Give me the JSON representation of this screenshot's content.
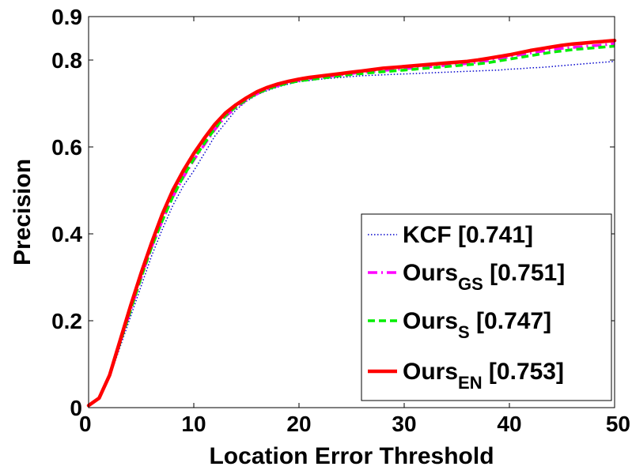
{
  "chart_data": {
    "type": "line",
    "title": "",
    "xlabel": "Location Error Threshold",
    "ylabel": "Precision",
    "xlim": [
      0,
      50
    ],
    "ylim": [
      0,
      0.9
    ],
    "xticks": [
      0,
      10,
      20,
      30,
      40,
      50
    ],
    "xtick_labels": [
      "0",
      "10",
      "20",
      "30",
      "40",
      "50"
    ],
    "yticks": [
      0,
      0.2,
      0.4,
      0.6,
      0.8,
      0.9
    ],
    "ytick_labels": [
      "0",
      "0.2",
      "0.4",
      "0.6",
      "0.8",
      "0.9"
    ],
    "grid": false,
    "legend_position": "bottom-right",
    "x": [
      0,
      1,
      2,
      3,
      4,
      5,
      6,
      7,
      8,
      9,
      10,
      11,
      12,
      13,
      14,
      15,
      16,
      17,
      18,
      19,
      20,
      21,
      22,
      23,
      24,
      25,
      26,
      27,
      28,
      29,
      30,
      31,
      32,
      33,
      34,
      35,
      36,
      37,
      38,
      39,
      40,
      41,
      42,
      43,
      44,
      45,
      46,
      47,
      48,
      49,
      50
    ],
    "series": [
      {
        "name": "KCF",
        "sub": "",
        "score": "[0.741]",
        "color": "#0000cc",
        "dash": "1.5 2.5",
        "width": 1.5,
        "values": [
          0.005,
          0.02,
          0.07,
          0.14,
          0.21,
          0.28,
          0.35,
          0.41,
          0.465,
          0.51,
          0.545,
          0.585,
          0.625,
          0.655,
          0.685,
          0.705,
          0.72,
          0.73,
          0.738,
          0.745,
          0.75,
          0.753,
          0.756,
          0.758,
          0.76,
          0.762,
          0.764,
          0.765,
          0.766,
          0.767,
          0.768,
          0.769,
          0.77,
          0.771,
          0.772,
          0.773,
          0.774,
          0.775,
          0.776,
          0.777,
          0.779,
          0.78,
          0.782,
          0.783,
          0.785,
          0.787,
          0.789,
          0.791,
          0.793,
          0.795,
          0.797
        ]
      },
      {
        "name": "Ours",
        "sub": "GS",
        "score": "[0.751]",
        "color": "#ff00ff",
        "dash": "12 5 2 5",
        "width": 3.5,
        "values": [
          0.005,
          0.022,
          0.075,
          0.15,
          0.225,
          0.3,
          0.37,
          0.43,
          0.485,
          0.53,
          0.57,
          0.605,
          0.64,
          0.67,
          0.69,
          0.708,
          0.722,
          0.733,
          0.741,
          0.748,
          0.753,
          0.757,
          0.76,
          0.763,
          0.766,
          0.769,
          0.772,
          0.774,
          0.776,
          0.778,
          0.78,
          0.782,
          0.784,
          0.786,
          0.788,
          0.79,
          0.792,
          0.795,
          0.799,
          0.803,
          0.807,
          0.812,
          0.816,
          0.82,
          0.824,
          0.827,
          0.829,
          0.831,
          0.833,
          0.835,
          0.838
        ]
      },
      {
        "name": "Ours",
        "sub": "S",
        "score": "[0.747]",
        "color": "#00ee00",
        "dash": "9 5",
        "width": 3.5,
        "values": [
          0.005,
          0.022,
          0.075,
          0.15,
          0.225,
          0.3,
          0.37,
          0.43,
          0.485,
          0.532,
          0.572,
          0.608,
          0.642,
          0.672,
          0.692,
          0.709,
          0.723,
          0.733,
          0.741,
          0.747,
          0.752,
          0.755,
          0.758,
          0.761,
          0.764,
          0.767,
          0.769,
          0.771,
          0.773,
          0.775,
          0.777,
          0.779,
          0.781,
          0.783,
          0.785,
          0.787,
          0.789,
          0.791,
          0.794,
          0.798,
          0.802,
          0.806,
          0.81,
          0.814,
          0.818,
          0.821,
          0.824,
          0.826,
          0.828,
          0.83,
          0.832
        ]
      },
      {
        "name": "Ours",
        "sub": "EN",
        "score": "[0.753]",
        "color": "#ff0000",
        "dash": "",
        "width": 4.5,
        "values": [
          0.005,
          0.022,
          0.075,
          0.155,
          0.235,
          0.31,
          0.38,
          0.445,
          0.5,
          0.545,
          0.585,
          0.62,
          0.652,
          0.678,
          0.697,
          0.713,
          0.727,
          0.737,
          0.745,
          0.751,
          0.756,
          0.76,
          0.763,
          0.766,
          0.769,
          0.772,
          0.775,
          0.778,
          0.781,
          0.783,
          0.785,
          0.787,
          0.789,
          0.791,
          0.793,
          0.795,
          0.797,
          0.8,
          0.804,
          0.808,
          0.812,
          0.817,
          0.822,
          0.826,
          0.83,
          0.834,
          0.837,
          0.839,
          0.841,
          0.843,
          0.845
        ]
      }
    ]
  }
}
